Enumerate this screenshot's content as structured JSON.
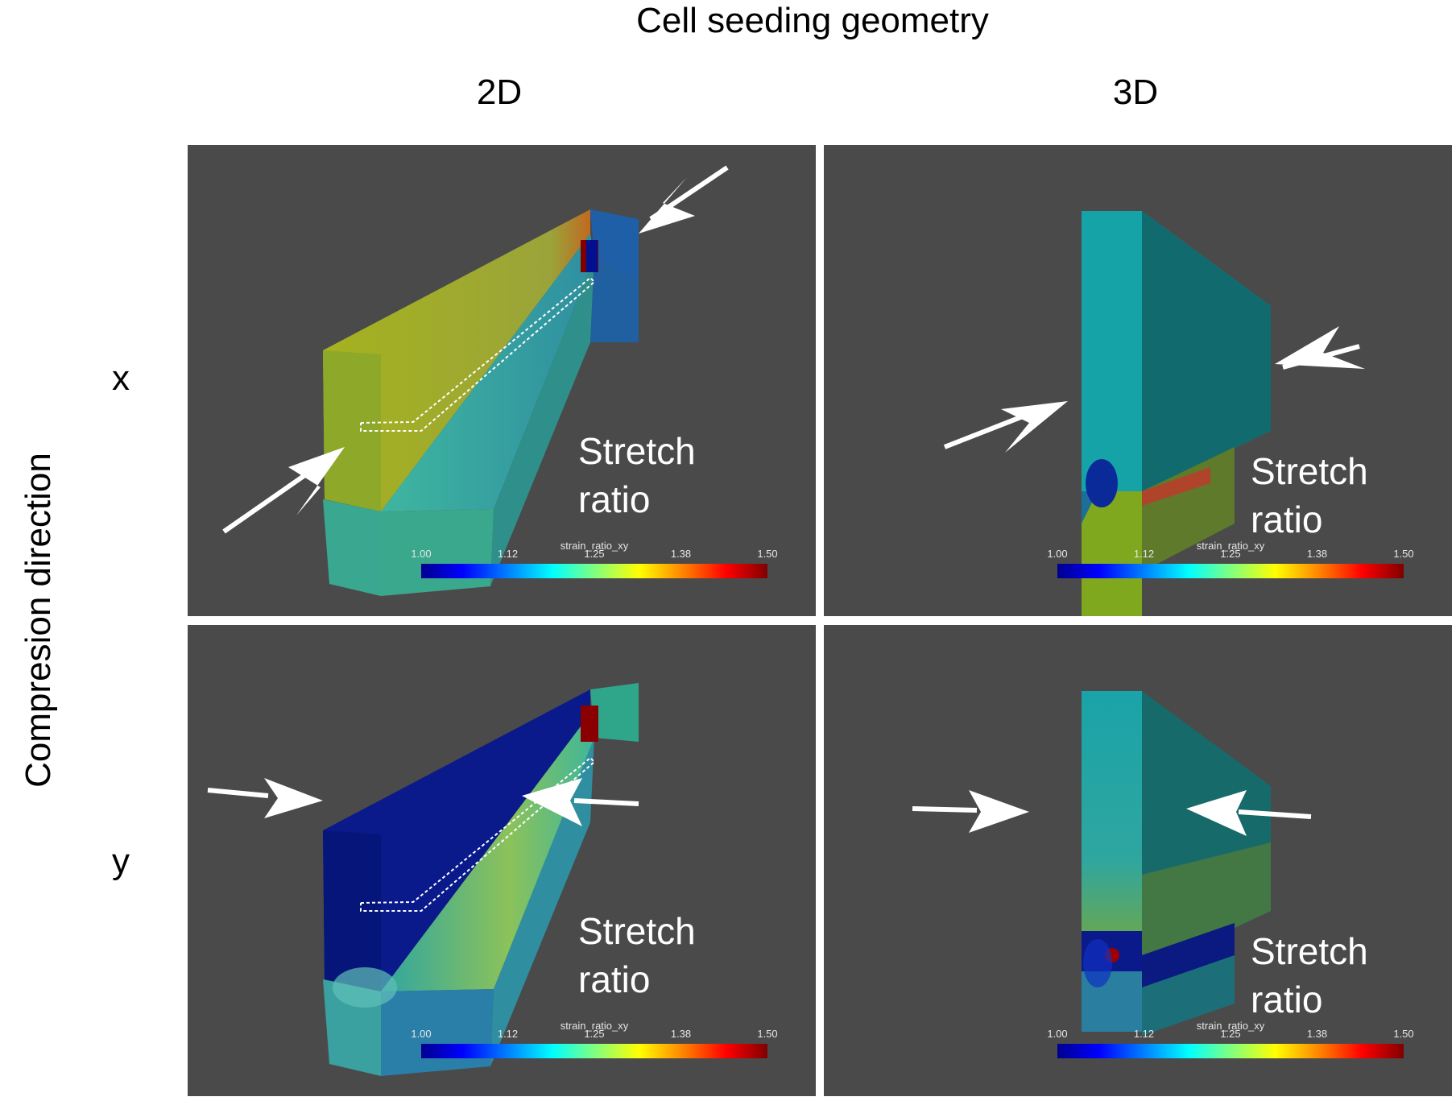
{
  "figure": {
    "title": "Cell seeding geometry",
    "columns": [
      "2D",
      "3D"
    ],
    "rows": [
      "x",
      "y"
    ],
    "row_axis_label": "Compresion direction"
  },
  "panels": [
    {
      "id": "p11",
      "label_line1": "Stretch",
      "label_line2": "ratio"
    },
    {
      "id": "p12",
      "label_line1": "Stretch",
      "label_line2": "ratio"
    },
    {
      "id": "p21",
      "label_line1": "Stretch",
      "label_line2": "ratio"
    },
    {
      "id": "p22",
      "label_line1": "Stretch",
      "label_line2": "ratio"
    }
  ],
  "colorbar": {
    "title": "strain_ratio_xy",
    "ticks": [
      "1.00",
      "1.12",
      "1.25",
      "1.38",
      "1.50"
    ],
    "colormap": [
      "#00008f",
      "#0000ff",
      "#0080ff",
      "#00ffff",
      "#80ff80",
      "#ffff00",
      "#ff8000",
      "#ff0000",
      "#800000"
    ]
  },
  "colors": {
    "panel_background": "#4a4a4a",
    "arrow": "#ffffff"
  }
}
